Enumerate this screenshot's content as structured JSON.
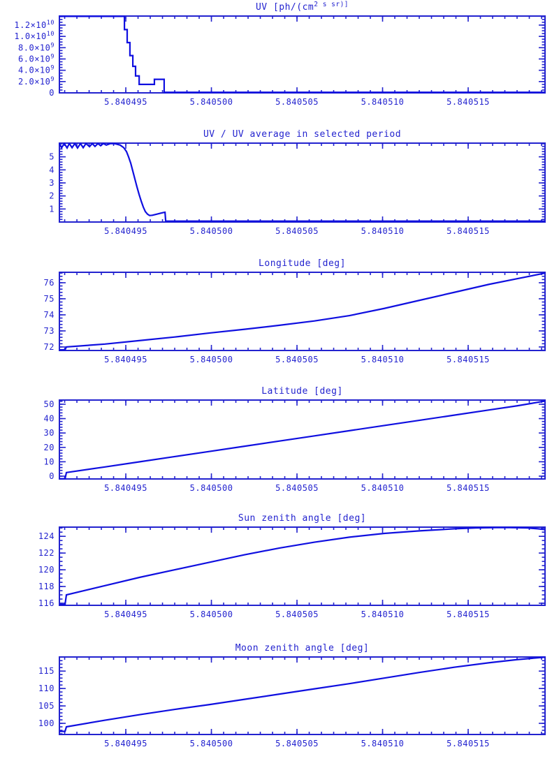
{
  "colors": {
    "accent": "#2323cf",
    "line": "#0f0fe0",
    "background": "#ffffff"
  },
  "x_axis": {
    "xlim": [
      5.84049112,
      5.84051949
    ],
    "tick_values": [
      5.840495,
      5.8405,
      5.840505,
      5.84051,
      5.840515
    ],
    "tick_labels": [
      "5.840495",
      "5.840500",
      "5.840505",
      "5.840510",
      "5.840515"
    ],
    "minor_per_major": 7
  },
  "chart_data": [
    {
      "type": "line",
      "title": "UV [ph/(cm^2 s sr)]",
      "ylim": [
        0,
        13600000000
      ],
      "ytick_values": [
        0,
        2000000000,
        4000000000,
        6000000000,
        8000000000,
        10000000000,
        12000000000
      ],
      "ytick_labels": [
        "0",
        "2.0×10^9",
        "4.0×10^9",
        "6.0×10^9",
        "8.0×10^9",
        "1.0×10^10",
        "1.2×10^10"
      ],
      "y_minor_divs": 4,
      "points": [
        [
          5.84049112,
          13550000000
        ],
        [
          5.84049492,
          13550000000
        ],
        [
          5.84049492,
          11200000000
        ],
        [
          5.84049508,
          11200000000
        ],
        [
          5.84049508,
          8900000000
        ],
        [
          5.84049524,
          8900000000
        ],
        [
          5.84049524,
          6600000000
        ],
        [
          5.84049541,
          6600000000
        ],
        [
          5.84049541,
          4700000000
        ],
        [
          5.84049557,
          4700000000
        ],
        [
          5.84049557,
          3000000000
        ],
        [
          5.84049578,
          3000000000
        ],
        [
          5.84049578,
          1500000000
        ],
        [
          5.84049667,
          1500000000
        ],
        [
          5.84049667,
          2400000000
        ],
        [
          5.84049724,
          2400000000
        ],
        [
          5.84049724,
          100000000
        ],
        [
          5.84051949,
          100000000
        ]
      ]
    },
    {
      "type": "line",
      "title": "UV / UV average in selected period",
      "ylim": [
        0,
        6.05
      ],
      "ytick_values": [
        1,
        2,
        3,
        4,
        5
      ],
      "ytick_labels": [
        "1",
        "2",
        "3",
        "4",
        "5"
      ],
      "y_minor_divs": 5,
      "points": [
        [
          5.84049112,
          6.02
        ],
        [
          5.84049125,
          5.7
        ],
        [
          5.84049141,
          6.02
        ],
        [
          5.84049157,
          5.68
        ],
        [
          5.8404917,
          6.02
        ],
        [
          5.84049186,
          5.7
        ],
        [
          5.84049202,
          6.02
        ],
        [
          5.84049218,
          5.68
        ],
        [
          5.84049235,
          6.02
        ],
        [
          5.84049251,
          5.7
        ],
        [
          5.84049267,
          6.02
        ],
        [
          5.84049288,
          5.78
        ],
        [
          5.84049304,
          6.02
        ],
        [
          5.8404932,
          5.8
        ],
        [
          5.84049337,
          6.02
        ],
        [
          5.84049353,
          5.85
        ],
        [
          5.84049369,
          6.02
        ],
        [
          5.84049386,
          5.9
        ],
        [
          5.8404941,
          6.02
        ],
        [
          5.84049439,
          6.0
        ],
        [
          5.84049467,
          5.9
        ],
        [
          5.84049488,
          5.7
        ],
        [
          5.84049504,
          5.4
        ],
        [
          5.84049516,
          5.0
        ],
        [
          5.84049529,
          4.5
        ],
        [
          5.84049541,
          3.9
        ],
        [
          5.84049553,
          3.3
        ],
        [
          5.84049565,
          2.7
        ],
        [
          5.84049578,
          2.1
        ],
        [
          5.8404959,
          1.6
        ],
        [
          5.84049602,
          1.15
        ],
        [
          5.84049614,
          0.8
        ],
        [
          5.84049627,
          0.6
        ],
        [
          5.84049639,
          0.5
        ],
        [
          5.84049655,
          0.52
        ],
        [
          5.8404968,
          0.6
        ],
        [
          5.84049704,
          0.68
        ],
        [
          5.84049724,
          0.74
        ],
        [
          5.84049729,
          0.75
        ],
        [
          5.84049733,
          0.07
        ],
        [
          5.84051949,
          0.07
        ]
      ]
    },
    {
      "type": "line",
      "title": "Longitude [deg]",
      "ylim": [
        71.78,
        76.65
      ],
      "ytick_values": [
        72,
        73,
        74,
        75,
        76
      ],
      "ytick_labels": [
        "72",
        "73",
        "74",
        "75",
        "76"
      ],
      "y_minor_divs": 5,
      "points": [
        [
          5.84049112,
          71.82
        ],
        [
          5.84049145,
          71.82
        ],
        [
          5.84049153,
          72.0
        ],
        [
          5.84049378,
          72.18
        ],
        [
          5.84049582,
          72.4
        ],
        [
          5.84049786,
          72.62
        ],
        [
          5.8404999,
          72.87
        ],
        [
          5.84050194,
          73.1
        ],
        [
          5.84050398,
          73.35
        ],
        [
          5.84050602,
          73.62
        ],
        [
          5.84050806,
          73.95
        ],
        [
          5.8405101,
          74.4
        ],
        [
          5.84051214,
          74.9
        ],
        [
          5.84051418,
          75.4
        ],
        [
          5.84051622,
          75.9
        ],
        [
          5.84051786,
          76.25
        ],
        [
          5.84051949,
          76.6
        ]
      ]
    },
    {
      "type": "line",
      "title": "Latitude [deg]",
      "ylim": [
        -1.95,
        52.9
      ],
      "ytick_values": [
        0,
        10,
        20,
        30,
        40,
        50
      ],
      "ytick_labels": [
        "0",
        "10",
        "20",
        "30",
        "40",
        "50"
      ],
      "y_minor_divs": 5,
      "points": [
        [
          5.84049112,
          -1.8
        ],
        [
          5.84049145,
          -1.8
        ],
        [
          5.84049153,
          2.5
        ],
        [
          5.84049378,
          6.4
        ],
        [
          5.84049582,
          10.0
        ],
        [
          5.84049786,
          13.6
        ],
        [
          5.8404999,
          17.2
        ],
        [
          5.84050194,
          20.8
        ],
        [
          5.84050398,
          24.4
        ],
        [
          5.84050602,
          28.0
        ],
        [
          5.84050806,
          31.6
        ],
        [
          5.8405101,
          35.2
        ],
        [
          5.84051214,
          38.8
        ],
        [
          5.84051418,
          42.4
        ],
        [
          5.84051622,
          46.0
        ],
        [
          5.84051786,
          48.9
        ],
        [
          5.84051949,
          52.2
        ]
      ]
    },
    {
      "type": "line",
      "title": "Sun zenith angle [deg]",
      "ylim": [
        115.75,
        125.1
      ],
      "ytick_values": [
        116,
        118,
        120,
        122,
        124
      ],
      "ytick_labels": [
        "116",
        "118",
        "120",
        "122",
        "124"
      ],
      "y_minor_divs": 4,
      "points": [
        [
          5.84049112,
          115.85
        ],
        [
          5.84049145,
          115.85
        ],
        [
          5.84049153,
          117.0
        ],
        [
          5.84049378,
          118.1
        ],
        [
          5.84049582,
          119.1
        ],
        [
          5.84049786,
          120.0
        ],
        [
          5.8404999,
          120.9
        ],
        [
          5.84050194,
          121.8
        ],
        [
          5.84050398,
          122.6
        ],
        [
          5.84050602,
          123.3
        ],
        [
          5.84050806,
          123.9
        ],
        [
          5.8405101,
          124.35
        ],
        [
          5.84051214,
          124.65
        ],
        [
          5.84051418,
          124.9
        ],
        [
          5.84051541,
          125.0
        ],
        [
          5.84051663,
          125.05
        ],
        [
          5.84051745,
          125.05
        ],
        [
          5.84051847,
          125.0
        ],
        [
          5.84051908,
          124.9
        ],
        [
          5.84051949,
          124.8
        ]
      ]
    },
    {
      "type": "line",
      "title": "Moon zenith angle [deg]",
      "ylim": [
        96.8,
        119.05
      ],
      "ytick_values": [
        100,
        105,
        110,
        115
      ],
      "ytick_labels": [
        "100",
        "105",
        "110",
        "115"
      ],
      "y_minor_divs": 5,
      "points": [
        [
          5.84049112,
          97.7
        ],
        [
          5.84049145,
          97.7
        ],
        [
          5.84049153,
          99.0
        ],
        [
          5.84049378,
          100.9
        ],
        [
          5.84049582,
          102.5
        ],
        [
          5.84049786,
          104.0
        ],
        [
          5.8404999,
          105.4
        ],
        [
          5.84050194,
          106.9
        ],
        [
          5.84050398,
          108.4
        ],
        [
          5.84050602,
          109.9
        ],
        [
          5.84050806,
          111.4
        ],
        [
          5.8405101,
          113.0
        ],
        [
          5.84051214,
          114.6
        ],
        [
          5.84051418,
          116.1
        ],
        [
          5.84051622,
          117.4
        ],
        [
          5.84051786,
          118.3
        ],
        [
          5.84051949,
          119.0
        ]
      ]
    }
  ]
}
